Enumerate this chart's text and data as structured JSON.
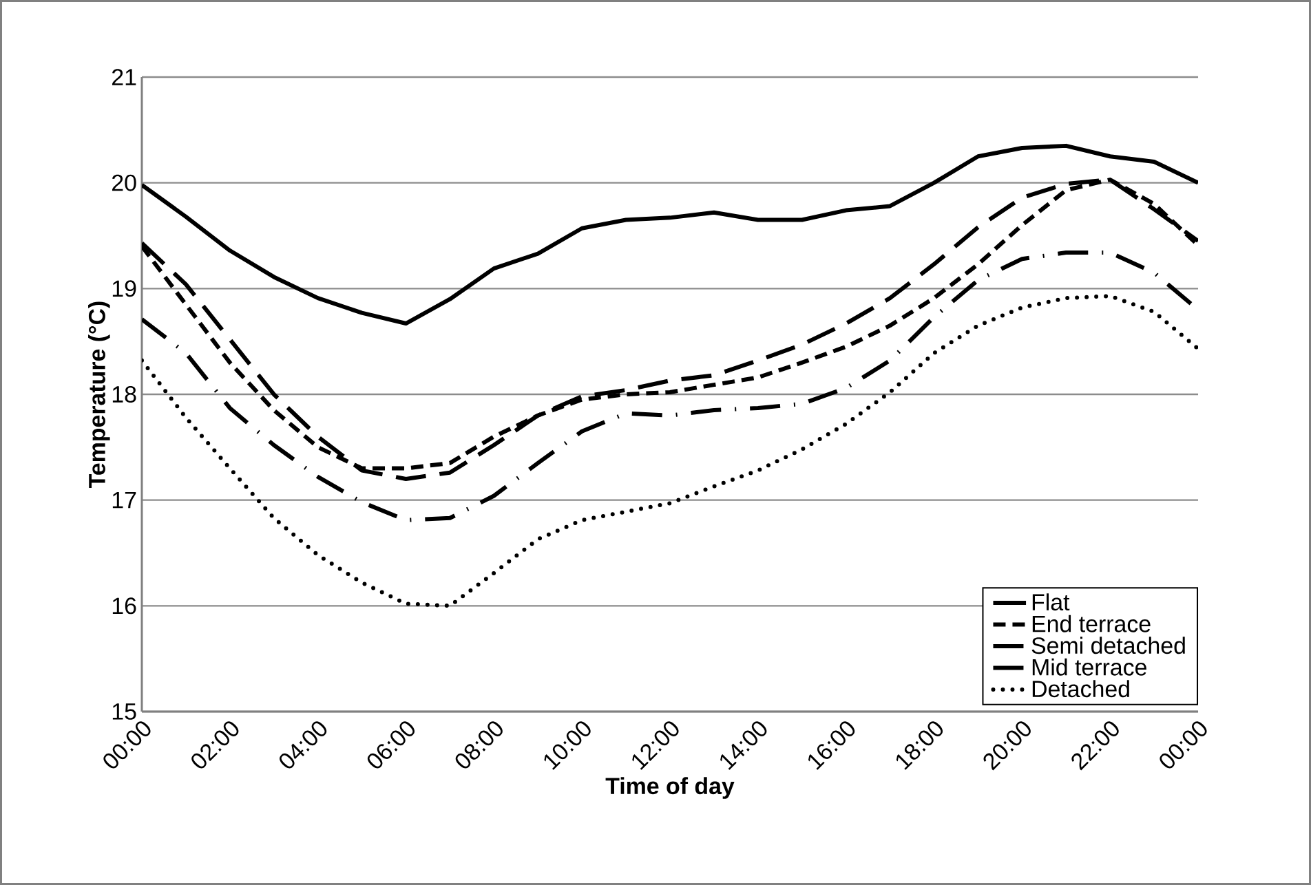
{
  "chart_data": {
    "type": "line",
    "xlabel": "Time of day",
    "ylabel": "Temperature (°C)",
    "x": [
      0,
      1,
      2,
      3,
      4,
      5,
      6,
      7,
      8,
      9,
      10,
      11,
      12,
      13,
      14,
      15,
      16,
      17,
      18,
      19,
      20,
      21,
      22,
      23,
      24
    ],
    "xlim": [
      0,
      24
    ],
    "xticks": [
      {
        "value": 0,
        "label": "00:00"
      },
      {
        "value": 2,
        "label": "02:00"
      },
      {
        "value": 4,
        "label": "04:00"
      },
      {
        "value": 6,
        "label": "06:00"
      },
      {
        "value": 8,
        "label": "08:00"
      },
      {
        "value": 10,
        "label": "10:00"
      },
      {
        "value": 12,
        "label": "12:00"
      },
      {
        "value": 14,
        "label": "14:00"
      },
      {
        "value": 16,
        "label": "16:00"
      },
      {
        "value": 18,
        "label": "18:00"
      },
      {
        "value": 20,
        "label": "20:00"
      },
      {
        "value": 22,
        "label": "22:00"
      },
      {
        "value": 24,
        "label": "00:00"
      }
    ],
    "ylim": [
      15,
      21
    ],
    "yticks": [
      15,
      16,
      17,
      18,
      19,
      20,
      21
    ],
    "grid": "y",
    "legend": "bottom right",
    "marker": "none",
    "series": [
      {
        "name": "Flat",
        "color": "#000000",
        "line_style": "solid",
        "values": [
          19.98,
          19.68,
          19.36,
          19.11,
          18.91,
          18.77,
          18.67,
          18.9,
          19.19,
          19.33,
          19.57,
          19.65,
          19.67,
          19.72,
          19.65,
          19.65,
          19.74,
          19.78,
          20.0,
          20.25,
          20.33,
          20.35,
          20.25,
          20.2,
          20.0
        ]
      },
      {
        "name": "End terrace",
        "color": "#000000",
        "line_style": "dashed",
        "values": [
          19.4,
          18.85,
          18.3,
          17.85,
          17.5,
          17.3,
          17.3,
          17.35,
          17.6,
          17.8,
          17.95,
          18.0,
          18.02,
          18.09,
          18.16,
          18.3,
          18.45,
          18.65,
          18.91,
          19.23,
          19.6,
          19.93,
          20.03,
          19.8,
          19.41
        ]
      },
      {
        "name": "Semi detached",
        "color": "#000000",
        "line_style": "longdashed",
        "values": [
          19.43,
          19.04,
          18.52,
          18.0,
          17.6,
          17.28,
          17.2,
          17.26,
          17.52,
          17.8,
          17.98,
          18.04,
          18.13,
          18.18,
          18.32,
          18.47,
          18.67,
          18.91,
          19.23,
          19.58,
          19.86,
          19.99,
          20.03,
          19.75,
          19.45
        ]
      },
      {
        "name": "Mid terrace",
        "color": "#000000",
        "line_style": "dashdot",
        "values": [
          18.71,
          18.39,
          17.87,
          17.52,
          17.22,
          16.98,
          16.81,
          16.83,
          17.04,
          17.35,
          17.65,
          17.82,
          17.8,
          17.85,
          17.87,
          17.91,
          18.06,
          18.32,
          18.73,
          19.08,
          19.28,
          19.34,
          19.34,
          19.15,
          18.8
        ]
      },
      {
        "name": "Detached",
        "color": "#000000",
        "line_style": "dotted",
        "values": [
          18.32,
          17.78,
          17.3,
          16.83,
          16.48,
          16.22,
          16.02,
          16.0,
          16.31,
          16.63,
          16.81,
          16.89,
          16.97,
          17.13,
          17.28,
          17.48,
          17.72,
          18.02,
          18.39,
          18.65,
          18.82,
          18.91,
          18.93,
          18.78,
          18.43
        ]
      }
    ]
  }
}
